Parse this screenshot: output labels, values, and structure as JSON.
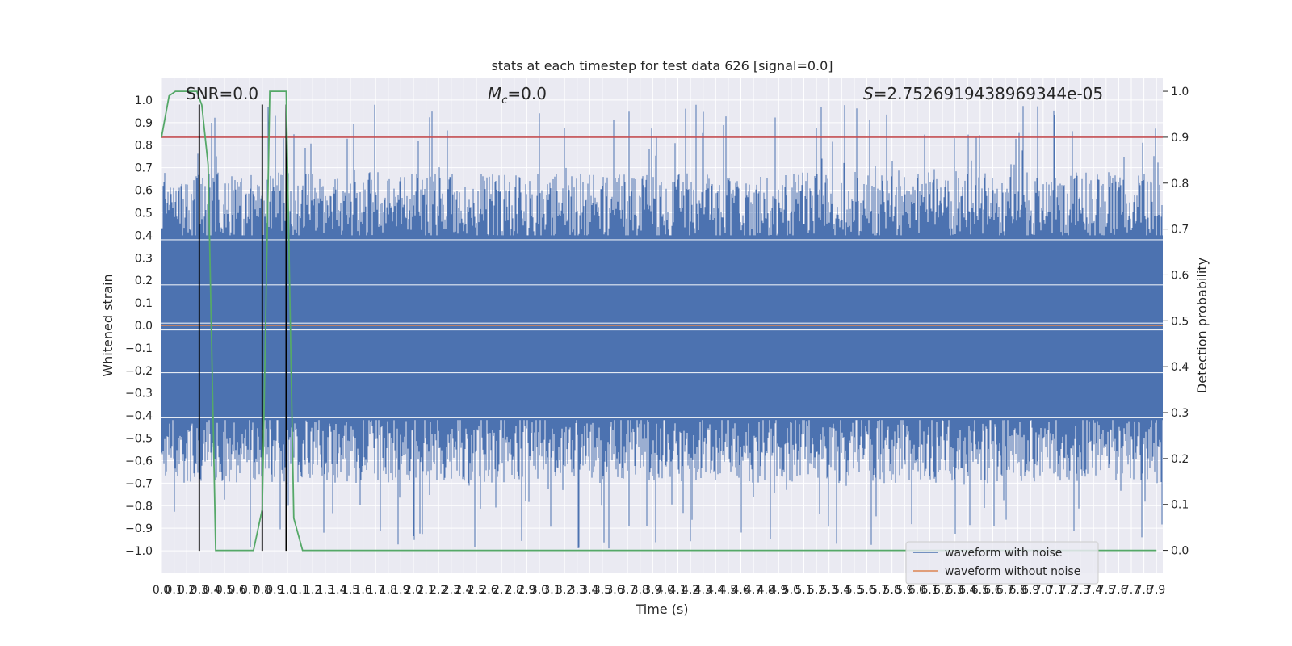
{
  "chart_data": {
    "type": "line",
    "title": "stats at each timestep for test data 626 [signal=0.0]",
    "xlabel": "Time (s)",
    "ylabel": "Whitened strain",
    "ylabel_right": "Detection probability",
    "xlim": [
      0.0,
      7.95
    ],
    "ylim": [
      -1.1,
      1.1
    ],
    "ylim_right": [
      -0.05,
      1.03
    ],
    "grid": true,
    "legend_position": "bottom-right",
    "x_ticks": [
      0.0,
      0.1,
      0.2,
      0.3,
      0.4,
      0.5,
      0.6,
      0.7,
      0.8,
      0.9,
      1.0,
      1.1,
      1.2,
      1.3,
      1.4,
      1.5,
      1.6,
      1.7,
      1.8,
      1.9,
      2.0,
      2.1,
      2.2,
      2.3,
      2.4,
      2.5,
      2.6,
      2.7,
      2.8,
      2.9,
      3.0,
      3.1,
      3.2,
      3.3,
      3.4,
      3.5,
      3.6,
      3.7,
      3.8,
      3.9,
      4.0,
      4.1,
      4.2,
      4.3,
      4.4,
      4.5,
      4.6,
      4.7,
      4.8,
      4.9,
      5.0,
      5.1,
      5.2,
      5.3,
      5.4,
      5.5,
      5.6,
      5.7,
      5.8,
      5.9,
      6.0,
      6.1,
      6.2,
      6.3,
      6.4,
      6.5,
      6.6,
      6.7,
      6.8,
      6.9,
      7.0,
      7.1,
      7.2,
      7.3,
      7.4,
      7.5,
      7.6,
      7.7,
      7.8,
      7.9
    ],
    "y_ticks_left": [
      -1.0,
      -0.9,
      -0.8,
      -0.7,
      -0.6,
      -0.5,
      -0.4,
      -0.3,
      -0.2,
      -0.1,
      0.0,
      0.1,
      0.2,
      0.3,
      0.4,
      0.5,
      0.6,
      0.7,
      0.8,
      0.9,
      1.0
    ],
    "y_ticks_right": [
      0.0,
      0.1,
      0.2,
      0.3,
      0.4,
      0.5,
      0.6,
      0.7,
      0.8,
      0.9,
      1.0
    ],
    "annotations": {
      "snr": "SNR=0.0",
      "mc": "=0.0",
      "s": "=2.7526919438969344e-05"
    },
    "threshold": 0.9,
    "vlines_x": [
      0.3,
      0.8,
      0.99
    ],
    "series": [
      {
        "name": "waveform with noise",
        "color": "#4c72b0",
        "axis": "left",
        "style": "noise",
        "band": [
          -0.42,
          0.4
        ],
        "peak_max": 0.98,
        "trough_min": -0.99,
        "seed": 626
      },
      {
        "name": "waveform without noise",
        "color": "#dd8452",
        "axis": "left",
        "x": [
          0.0,
          7.95
        ],
        "y": [
          0.0,
          0.0
        ]
      },
      {
        "name": "detection probability",
        "color": "#55a868",
        "axis": "right",
        "x": [
          0.0,
          0.06,
          0.11,
          0.28,
          0.32,
          0.37,
          0.43,
          0.73,
          0.8,
          0.86,
          0.99,
          1.05,
          1.12,
          7.9
        ],
        "y": [
          0.9,
          0.99,
          1.0,
          1.0,
          0.97,
          0.84,
          0.0,
          0.0,
          0.09,
          1.0,
          1.0,
          0.07,
          0.0,
          0.0
        ]
      },
      {
        "name": "threshold",
        "color": "#c44e52",
        "axis": "right",
        "x": [
          0.0,
          7.95
        ],
        "y": [
          0.9,
          0.9
        ]
      }
    ]
  }
}
